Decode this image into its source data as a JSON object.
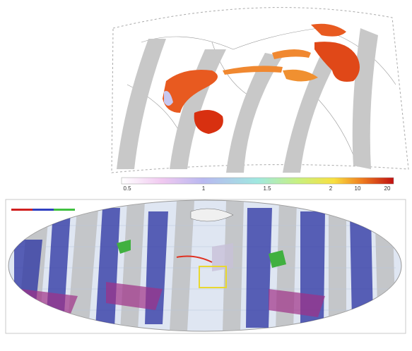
{
  "colorbar": {
    "labels": [
      "0.5",
      "1",
      "1.5",
      "2",
      "10",
      "20"
    ]
  }
}
